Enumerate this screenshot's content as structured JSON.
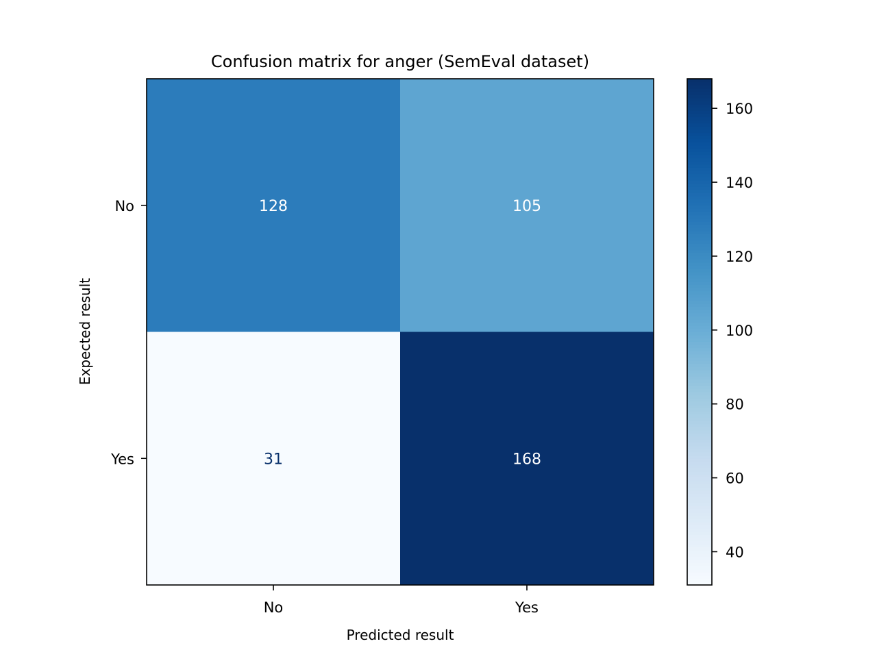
{
  "chart_data": {
    "type": "heatmap",
    "title": "Confusion matrix for anger (SemEval dataset)",
    "xlabel": "Predicted result",
    "ylabel": "Expected result",
    "x_categories": [
      "No",
      "Yes"
    ],
    "y_categories": [
      "No",
      "Yes"
    ],
    "values": [
      [
        128,
        105
      ],
      [
        31,
        168
      ]
    ],
    "colormap": "Blues",
    "colorbar": {
      "min": 31,
      "max": 168,
      "ticks": [
        40,
        60,
        80,
        100,
        120,
        140,
        160
      ]
    },
    "text_colors": {
      "light": "#ffffff",
      "dark": "#08306b"
    }
  }
}
